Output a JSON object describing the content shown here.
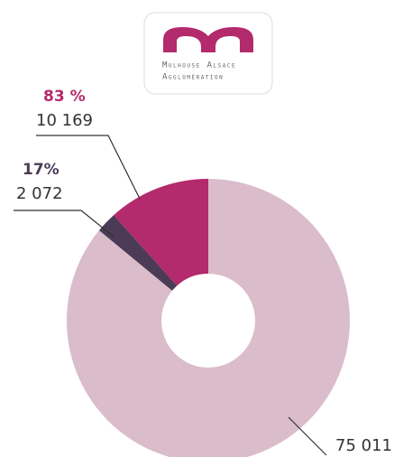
{
  "logo": {
    "line1": "Mulhouse Alsace",
    "line2": "Agglomération"
  },
  "chart_data": {
    "type": "donut",
    "values": [
      10169,
      2072,
      75011
    ],
    "value_labels": [
      "10 169",
      "2 072",
      "75 011"
    ],
    "percent_labels": [
      "83 %",
      "17%"
    ],
    "colors": [
      "#b32a6d",
      "#4b3b56",
      "#dabccb"
    ]
  }
}
